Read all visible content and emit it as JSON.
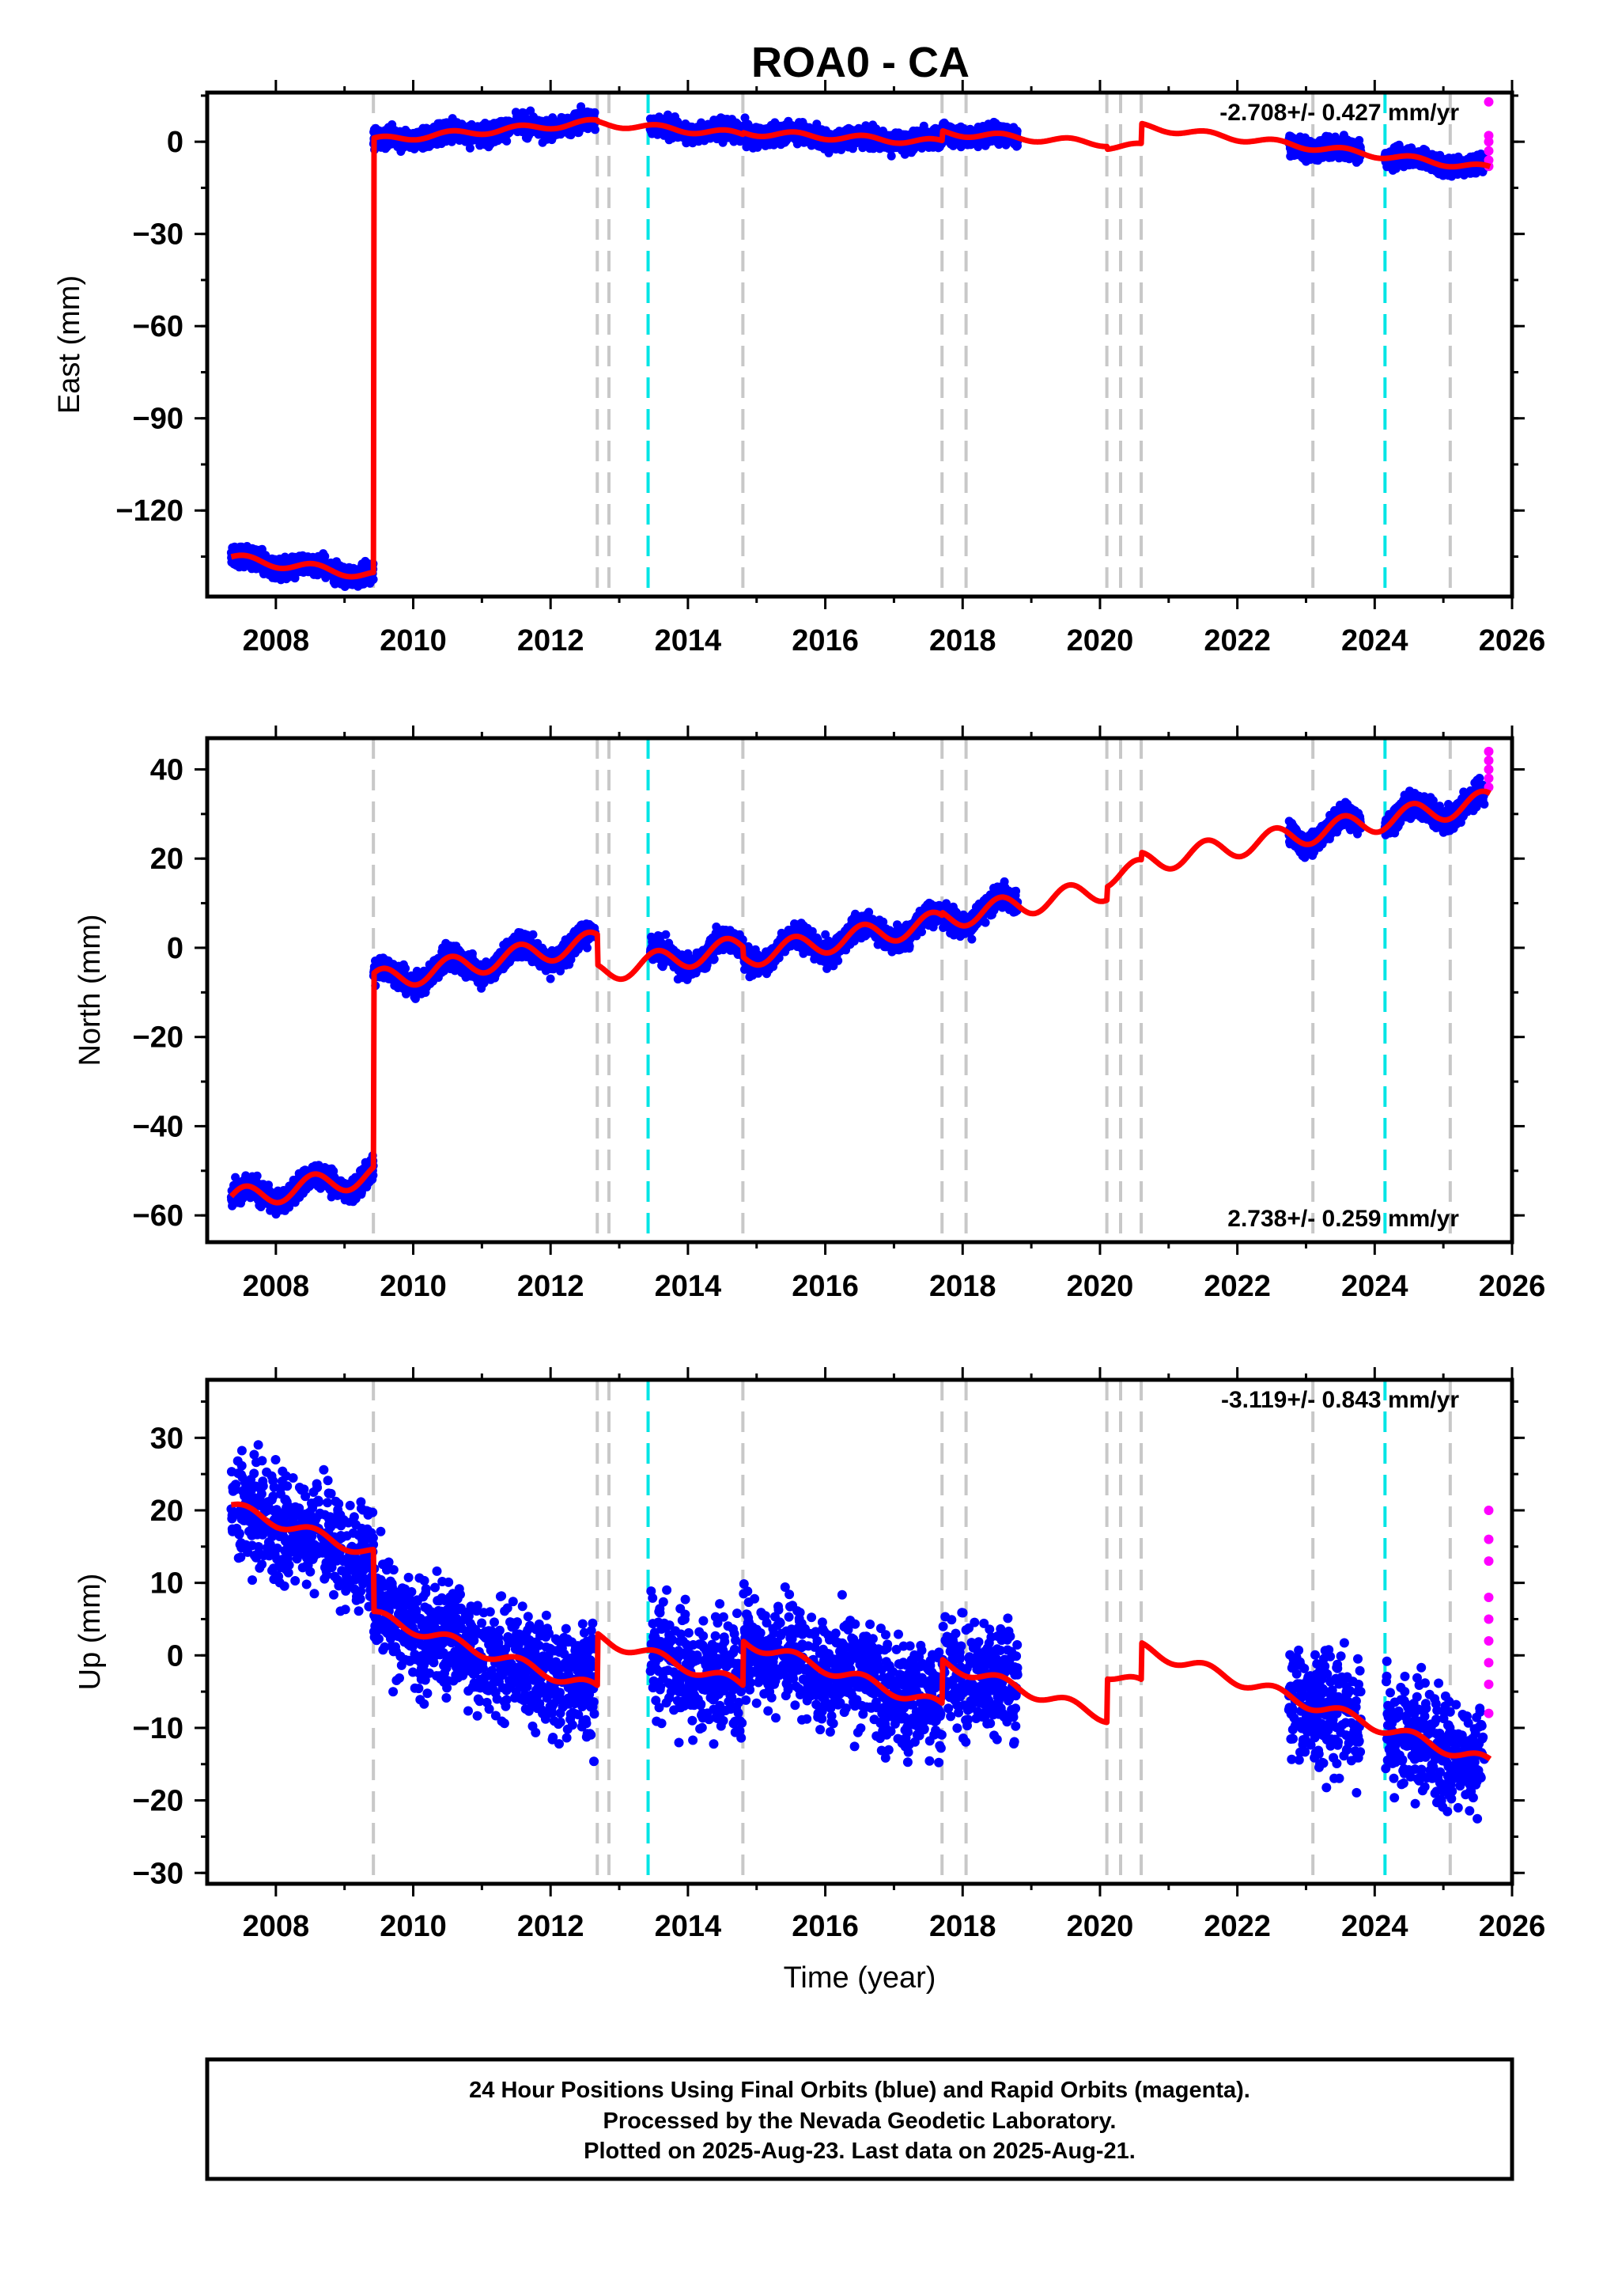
{
  "title": "ROA0 - CA",
  "chart_data": [
    {
      "type": "scatter",
      "ylabel": "East (mm)",
      "rate": "-2.708+/- 0.427 mm/yr",
      "xlim": [
        2007.0,
        2026.0
      ],
      "ylim": [
        -148,
        16
      ],
      "yticks": [
        0,
        -30,
        -60,
        -90,
        -120
      ],
      "xticks": [
        2008,
        2010,
        2012,
        2014,
        2016,
        2018,
        2020,
        2022,
        2024,
        2026
      ],
      "segments": [
        {
          "start": 2007.35,
          "end": 2009.42,
          "offset": -135.5,
          "rate": -2.7,
          "amp": 1.4
        },
        {
          "start": 2009.42,
          "end": 2012.68,
          "offset": 0.5,
          "rate": 1.8,
          "amp": 1.0
        },
        {
          "start": 2012.68,
          "end": 2014.8,
          "offset": 6.0,
          "rate": -1.7,
          "amp": 1.0
        },
        {
          "start": 2014.8,
          "end": 2017.7,
          "offset": 3.0,
          "rate": -1.1,
          "amp": 1.0
        },
        {
          "start": 2017.7,
          "end": 2020.1,
          "offset": 3.0,
          "rate": -1.5,
          "amp": 1.0
        },
        {
          "start": 2020.1,
          "end": 2020.6,
          "offset": -1.5,
          "rate": 0.0,
          "amp": 1.0
        },
        {
          "start": 2020.6,
          "end": 2025.68,
          "offset": 5.0,
          "rate": -2.708,
          "amp": 1.0
        }
      ],
      "data_ranges": [
        [
          2007.35,
          2012.65
        ],
        [
          2013.45,
          2018.8
        ],
        [
          2022.75,
          2023.8
        ],
        [
          2024.15,
          2025.6
        ]
      ],
      "noise": 2.2,
      "rapid_y": [
        -8,
        -6,
        -3,
        0,
        2,
        13
      ]
    },
    {
      "type": "scatter",
      "ylabel": "North (mm)",
      "rate": "2.738+/- 0.259 mm/yr",
      "xlim": [
        2007.0,
        2026.0
      ],
      "ylim": [
        -66,
        47
      ],
      "yticks": [
        40,
        20,
        0,
        -20,
        -40,
        -60
      ],
      "xticks": [
        2008,
        2010,
        2012,
        2014,
        2016,
        2018,
        2020,
        2022,
        2024,
        2026
      ],
      "segments": [
        {
          "start": 2007.35,
          "end": 2009.42,
          "offset": -56.5,
          "rate": 2.7,
          "amp": 2.5
        },
        {
          "start": 2009.42,
          "end": 2012.68,
          "offset": -7.5,
          "rate": 2.7,
          "amp": 2.5
        },
        {
          "start": 2012.68,
          "end": 2014.8,
          "offset": -5.5,
          "rate": 2.7,
          "amp": 2.5
        },
        {
          "start": 2014.8,
          "end": 2017.7,
          "offset": -2.0,
          "rate": 2.7,
          "amp": 2.5
        },
        {
          "start": 2017.7,
          "end": 2020.1,
          "offset": 6.5,
          "rate": 2.738,
          "amp": 2.5
        },
        {
          "start": 2020.1,
          "end": 2020.6,
          "offset": 16.0,
          "rate": 2.738,
          "amp": 2.5
        },
        {
          "start": 2020.6,
          "end": 2025.68,
          "offset": 19.0,
          "rate": 2.738,
          "amp": 2.5
        }
      ],
      "data_ranges": [
        [
          2007.35,
          2012.65
        ],
        [
          2013.45,
          2018.8
        ],
        [
          2022.75,
          2023.8
        ],
        [
          2024.15,
          2025.6
        ]
      ],
      "noise": 1.8,
      "rapid_y": [
        36,
        38,
        40,
        42,
        44
      ]
    },
    {
      "type": "scatter",
      "ylabel": "Up (mm)",
      "xlabel": "Time (year)",
      "rate": "-3.119+/- 0.843 mm/yr",
      "xlim": [
        2007.0,
        2026.0
      ],
      "ylim": [
        -31.5,
        38
      ],
      "yticks": [
        30,
        20,
        10,
        0,
        -10,
        -20,
        -30
      ],
      "xticks": [
        2008,
        2010,
        2012,
        2014,
        2016,
        2018,
        2020,
        2022,
        2024,
        2026
      ],
      "segments": [
        {
          "start": 2007.35,
          "end": 2009.42,
          "offset": 20.5,
          "rate": -3.119,
          "amp": 0.8
        },
        {
          "start": 2009.42,
          "end": 2012.68,
          "offset": 5.5,
          "rate": -3.119,
          "amp": 0.8
        },
        {
          "start": 2012.68,
          "end": 2014.8,
          "offset": 2.5,
          "rate": -3.119,
          "amp": 0.8
        },
        {
          "start": 2014.8,
          "end": 2017.7,
          "offset": 2.0,
          "rate": -3.119,
          "amp": 0.8
        },
        {
          "start": 2017.7,
          "end": 2020.1,
          "offset": -1.0,
          "rate": -3.119,
          "amp": 0.8
        },
        {
          "start": 2020.1,
          "end": 2020.6,
          "offset": -2.5,
          "rate": -3.119,
          "amp": 0.8
        },
        {
          "start": 2020.6,
          "end": 2025.68,
          "offset": 1.0,
          "rate": -3.119,
          "amp": 0.8
        }
      ],
      "data_ranges": [
        [
          2007.35,
          2012.65
        ],
        [
          2013.45,
          2018.8
        ],
        [
          2022.75,
          2023.8
        ],
        [
          2024.15,
          2025.6
        ]
      ],
      "noise": 5.5,
      "rapid_y": [
        -8,
        -4,
        -1,
        2,
        5,
        8,
        13,
        16,
        20
      ]
    }
  ],
  "offset_lines": {
    "gray": [
      2009.42,
      2012.68,
      2012.85,
      2014.8,
      2017.7,
      2018.05,
      2020.1,
      2020.3,
      2020.6,
      2023.1,
      2025.1
    ],
    "cyan": [
      2013.42,
      2024.15
    ]
  },
  "colors": {
    "final": "#0000ff",
    "rapid": "#ff00ff",
    "model": "#ff0000",
    "offset_gray": "#c8c8c8",
    "offset_cyan": "#00e5e5"
  },
  "footer": {
    "line1": "24 Hour Positions Using Final Orbits (blue) and Rapid Orbits (magenta).",
    "line2": "Processed by the Nevada Geodetic Laboratory.",
    "line3": "Plotted on 2025-Aug-23. Last data on 2025-Aug-21."
  }
}
